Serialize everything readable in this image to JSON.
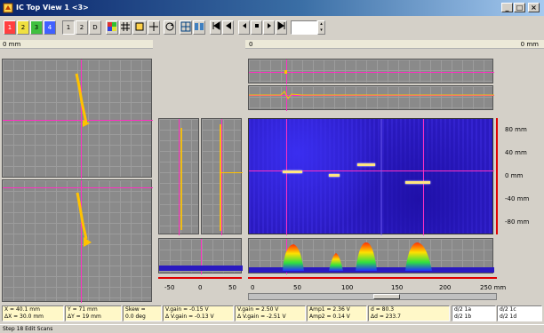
{
  "window": {
    "title": "IC Top View 1 <3>",
    "buttons": {
      "minimize": "_",
      "maximize": "□",
      "close": "×"
    }
  },
  "toolbar": {
    "buttons": [
      "1",
      "2",
      "3",
      "4",
      "1",
      "2",
      "D",
      "",
      "",
      "",
      "",
      "",
      "",
      "",
      "",
      "",
      "",
      "",
      ""
    ],
    "spin_value": ""
  },
  "rulers": {
    "left_label": "0 mm",
    "center_label": "0",
    "right_label": "0 mm"
  },
  "right_scale": [
    "80 mm",
    "40 mm",
    "0 mm",
    "-40 mm",
    "-80 mm"
  ],
  "mid_axis": [
    "-50",
    "0",
    "50"
  ],
  "bottom_axis": [
    "0",
    "50",
    "100",
    "150",
    "200",
    "250 mm"
  ],
  "status": {
    "box1": [
      "X = 40.1 mm",
      "ΔX = 30.0 mm"
    ],
    "box2": [
      "Y = 71 mm",
      "ΔY = 19 mm"
    ],
    "box3": [
      "Skew =",
      "0.0 deg"
    ],
    "box4": [
      "V.gain = -0.15 V",
      "Δ V.gain = -0.13 V"
    ],
    "box5": [
      "V.gain = 2.50 V",
      "Δ V.gain = -2.51 V"
    ],
    "box6": [
      "Amp1 = 2.36 V",
      "Amp2 = 0.14 V"
    ],
    "box7": [
      "d = 80.3",
      "Δd = 233.7"
    ],
    "box8": [
      "d/2 1a",
      "d/2 1b"
    ],
    "box9": [
      "d/2 1c",
      "d/2 1d"
    ]
  },
  "status_line": "Step 18 Edit Scans",
  "colors": {
    "cursor": "#ff2fc2",
    "trace": "#ffc200",
    "cscan_bg": "#2a1ac0",
    "scale_tick": "#e00000"
  }
}
